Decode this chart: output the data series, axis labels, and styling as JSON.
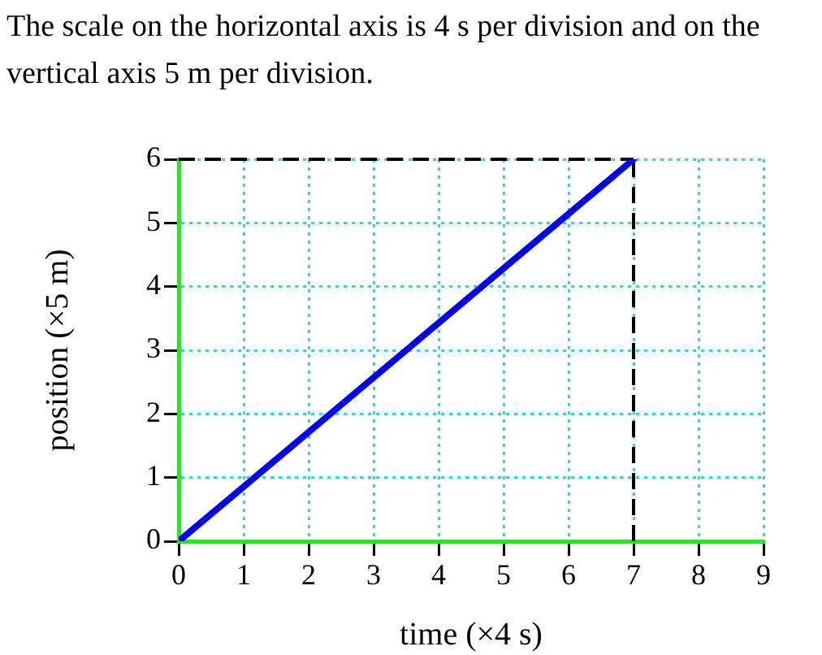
{
  "chart_data": {
    "type": "line",
    "title": "The scale on the horizontal axis is 4 s per division and on the vertical axis 5 m per division.",
    "xlabel": "time (×4 s)",
    "ylabel": "position (×5 m)",
    "x": [
      0,
      7
    ],
    "series": [
      {
        "color": "#0000ee",
        "values": [
          0,
          6
        ]
      }
    ],
    "xlim": [
      0,
      9
    ],
    "xticks": [
      0,
      1,
      2,
      3,
      4,
      5,
      6,
      7,
      8,
      9
    ],
    "ylim": [
      0,
      6
    ],
    "yticks": [
      0,
      1,
      2,
      3,
      4,
      5,
      6
    ],
    "ref_lines": [
      {
        "axis": "x",
        "value": 7,
        "color": "#000000",
        "line_style": "dashed"
      },
      {
        "axis": "y",
        "value": 6,
        "color": "#000000",
        "line_style": "dashed"
      }
    ],
    "grid": true,
    "legend": false,
    "marker": "none",
    "line_style": "solid"
  }
}
